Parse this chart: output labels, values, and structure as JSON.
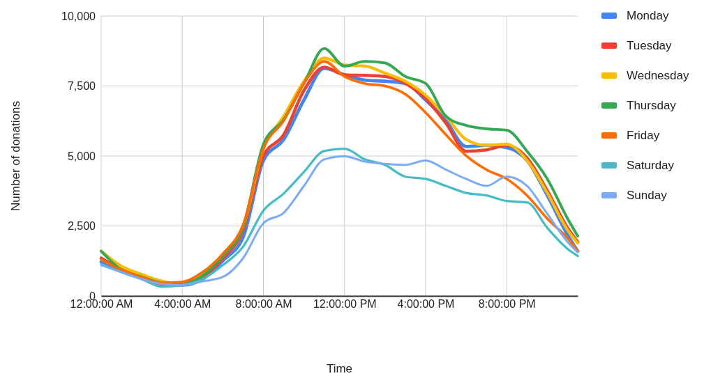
{
  "chart_data": {
    "type": "line",
    "xlabel": "Time",
    "ylabel": "Number of donations",
    "x": [
      0,
      1,
      2,
      3,
      4,
      5,
      6,
      7,
      8,
      9,
      10,
      11,
      12,
      13,
      14,
      15,
      16,
      17,
      18,
      19,
      20,
      21,
      22,
      23,
      23.5
    ],
    "xlim": [
      0,
      23.5
    ],
    "xticks": [
      {
        "value": 0,
        "label": "12:00:00 AM"
      },
      {
        "value": 4,
        "label": "4:00:00 AM"
      },
      {
        "value": 8,
        "label": "8:00:00 AM"
      },
      {
        "value": 12,
        "label": "12:00:00 PM"
      },
      {
        "value": 16,
        "label": "4:00:00 PM"
      },
      {
        "value": 20,
        "label": "8:00:00 PM"
      }
    ],
    "ylim": [
      0,
      10000
    ],
    "yticks": [
      0,
      {
        "value": 2500,
        "label": "2,500"
      },
      {
        "value": 5000,
        "label": "5,000"
      },
      {
        "value": 7500,
        "label": "7,500"
      },
      {
        "value": 10000,
        "label": "10,000"
      }
    ],
    "grid": true,
    "legend": "right",
    "series": [
      {
        "name": "Monday",
        "color": "#4285f4",
        "values": [
          1220,
          930,
          680,
          430,
          390,
          600,
          1260,
          2100,
          4840,
          5590,
          7000,
          8130,
          7900,
          7710,
          7670,
          7590,
          7000,
          6260,
          5340,
          5380,
          5300,
          4840,
          3590,
          2180,
          1600
        ]
      },
      {
        "name": "Tuesday",
        "color": "#ea4335",
        "values": [
          1350,
          930,
          680,
          430,
          430,
          680,
          1350,
          2350,
          5000,
          5760,
          7340,
          8170,
          7900,
          7880,
          7840,
          7590,
          7050,
          6170,
          5170,
          5220,
          5380,
          4930,
          3760,
          2430,
          1930
        ]
      },
      {
        "name": "Wednesday",
        "color": "#fbbc04",
        "values": [
          1600,
          1060,
          770,
          530,
          430,
          770,
          1430,
          2470,
          5260,
          6420,
          7670,
          8500,
          8250,
          8210,
          7960,
          7670,
          7170,
          6420,
          5590,
          5380,
          5420,
          4840,
          3680,
          2350,
          1890
        ]
      },
      {
        "name": "Thursday",
        "color": "#34a853",
        "values": [
          1600,
          930,
          680,
          470,
          430,
          720,
          1430,
          2470,
          5420,
          6300,
          7590,
          8840,
          8210,
          8380,
          8320,
          7840,
          7590,
          6420,
          6090,
          5970,
          5920,
          5170,
          4180,
          2760,
          2140
        ]
      },
      {
        "name": "Friday",
        "color": "#ff6d01",
        "values": [
          1300,
          930,
          680,
          470,
          500,
          850,
          1510,
          2550,
          5260,
          6260,
          7590,
          8380,
          7840,
          7590,
          7500,
          7210,
          6550,
          5760,
          5010,
          4510,
          4180,
          3590,
          2760,
          2060,
          1600
        ]
      },
      {
        "name": "Saturday",
        "color": "#46bdc6",
        "values": [
          1140,
          850,
          600,
          330,
          390,
          600,
          1100,
          1760,
          3050,
          3660,
          4430,
          5180,
          5260,
          4880,
          4680,
          4260,
          4180,
          3930,
          3680,
          3590,
          3390,
          3340,
          2430,
          1680,
          1430
        ]
      },
      {
        "name": "Sunday",
        "color": "#7baaf7",
        "values": [
          1100,
          850,
          600,
          430,
          390,
          520,
          680,
          1350,
          2600,
          2970,
          3930,
          4880,
          4990,
          4800,
          4720,
          4680,
          4840,
          4510,
          4180,
          3930,
          4260,
          3930,
          2930,
          1930,
          1560
        ]
      }
    ]
  }
}
